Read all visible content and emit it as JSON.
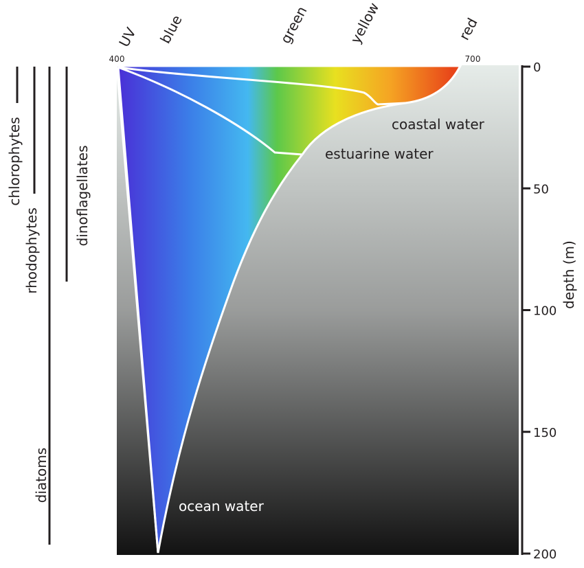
{
  "spectrum_labels": [
    "UV",
    "blue",
    "green",
    "yellow",
    "red"
  ],
  "wavelength_labels": [
    "400",
    "700"
  ],
  "depth_axis": {
    "title": "depth (m)",
    "ticks": [
      0,
      50,
      100,
      150,
      200
    ]
  },
  "water_types": [
    "coastal water",
    "estuarine water",
    "ocean water"
  ],
  "algae": [
    "chlorophytes",
    "rhodophytes",
    "dinoflagellates",
    "diatoms"
  ]
}
